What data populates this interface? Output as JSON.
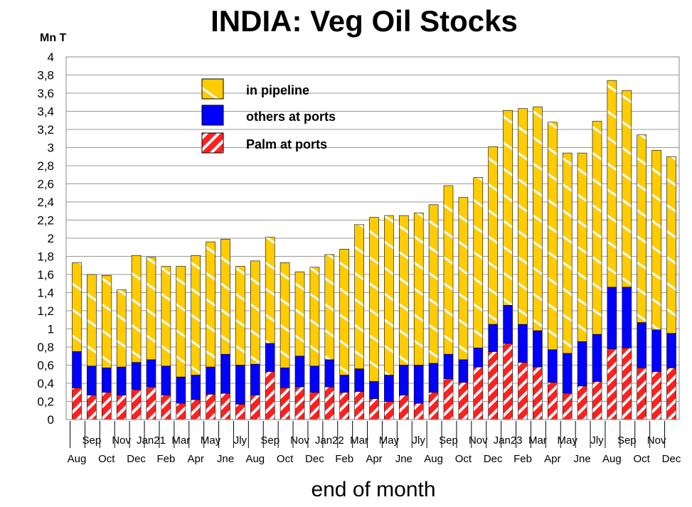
{
  "chart_data": {
    "type": "bar",
    "stacked": true,
    "title": "INDIA: Veg Oil Stocks",
    "ylabel": "Mn T",
    "xlabel": "end of month",
    "ylim": [
      0,
      4
    ],
    "yticks": [
      "0",
      "0,2",
      "0,4",
      "0,6",
      "0,8",
      "1",
      "1,2",
      "1,4",
      "1,6",
      "1,8",
      "2",
      "2,2",
      "2,4",
      "2,6",
      "2,8",
      "3",
      "3,2",
      "3,4",
      "3,6",
      "3,8",
      "4"
    ],
    "grid": true,
    "legend_position": "top-left",
    "categories": [
      "Aug",
      "Sep",
      "Oct",
      "Nov",
      "Dec",
      "Jan21",
      "Feb",
      "Mar",
      "Apr",
      "May",
      "Jne",
      "Jly",
      "Aug",
      "Sep",
      "Oct",
      "Nov",
      "Dec",
      "Jan22",
      "Feb",
      "Mar",
      "Apr",
      "May",
      "Jne",
      "Jly",
      "Aug",
      "Sep",
      "Oct",
      "Nov",
      "Dec",
      "Jan23",
      "Feb",
      "Mar",
      "Apr",
      "May",
      "Jne",
      "Jly",
      "Aug",
      "Sep",
      "Oct",
      "Nov",
      "Dec"
    ],
    "series": [
      {
        "name": "Palm at ports",
        "color": "#ff0000",
        "pattern": "diagonal-stripes",
        "values": [
          0.35,
          0.27,
          0.3,
          0.27,
          0.33,
          0.36,
          0.27,
          0.18,
          0.22,
          0.28,
          0.29,
          0.17,
          0.27,
          0.53,
          0.35,
          0.36,
          0.3,
          0.36,
          0.3,
          0.31,
          0.23,
          0.2,
          0.27,
          0.18,
          0.3,
          0.45,
          0.41,
          0.58,
          0.75,
          0.84,
          0.63,
          0.58,
          0.41,
          0.29,
          0.37,
          0.42,
          0.78,
          0.79,
          0.57,
          0.53,
          0.57
        ]
      },
      {
        "name": "others at ports",
        "color": "#0000ff",
        "pattern": "solid",
        "values": [
          0.4,
          0.32,
          0.27,
          0.31,
          0.3,
          0.3,
          0.32,
          0.29,
          0.27,
          0.3,
          0.43,
          0.43,
          0.34,
          0.31,
          0.22,
          0.34,
          0.29,
          0.3,
          0.19,
          0.25,
          0.19,
          0.29,
          0.33,
          0.42,
          0.32,
          0.27,
          0.25,
          0.21,
          0.3,
          0.42,
          0.42,
          0.4,
          0.36,
          0.44,
          0.49,
          0.52,
          0.68,
          0.67,
          0.5,
          0.46,
          0.38
        ]
      },
      {
        "name": "in pipeline",
        "color": "#ffcc00",
        "pattern": "wavy-stripes",
        "values": [
          0.98,
          1.01,
          1.02,
          0.85,
          1.18,
          1.13,
          1.1,
          1.22,
          1.32,
          1.38,
          1.27,
          1.09,
          1.14,
          1.17,
          1.16,
          0.93,
          1.09,
          1.16,
          1.39,
          1.59,
          1.81,
          1.76,
          1.65,
          1.68,
          1.75,
          1.86,
          1.79,
          1.88,
          1.96,
          2.15,
          2.38,
          2.47,
          2.51,
          2.21,
          2.08,
          2.35,
          2.28,
          2.17,
          2.07,
          1.98,
          1.95
        ]
      }
    ],
    "totals": [
      1.73,
      1.6,
      1.59,
      1.43,
      1.81,
      1.79,
      1.69,
      1.69,
      1.81,
      1.96,
      1.99,
      1.69,
      1.75,
      2.01,
      1.73,
      1.63,
      1.68,
      1.82,
      1.88,
      2.15,
      2.23,
      2.25,
      2.25,
      2.28,
      2.37,
      2.58,
      2.45,
      2.67,
      3.01,
      3.41,
      3.43,
      3.45,
      3.28,
      2.94,
      2.94,
      3.29,
      3.74,
      3.63,
      3.14,
      2.97,
      2.9
    ]
  }
}
